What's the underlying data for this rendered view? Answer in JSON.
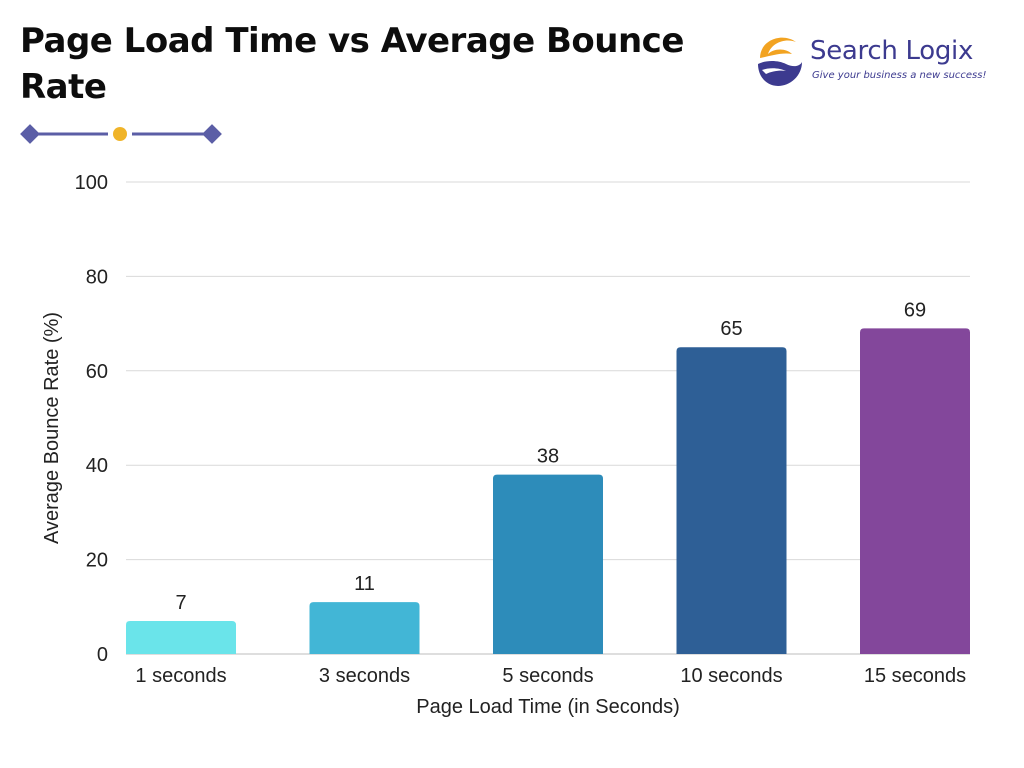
{
  "header": {
    "title": "Page Load Time vs Average Bounce Rate"
  },
  "brand": {
    "name": "Search Logix",
    "tagline": "Give your business a new success!",
    "colors": {
      "orange": "#f2a321",
      "indigo": "#3c3a8f"
    }
  },
  "decoration": {
    "line_color": "#5b5ea6",
    "dot_color": "#f0b429"
  },
  "chart_data": {
    "type": "bar",
    "categories": [
      "1 seconds",
      "3 seconds",
      "5 seconds",
      "10 seconds",
      "15 seconds"
    ],
    "values": [
      7,
      11,
      38,
      65,
      69
    ],
    "colors": [
      "#6ae4ea",
      "#42b6d6",
      "#2d8cba",
      "#2e5f96",
      "#83479b"
    ],
    "title": "",
    "xlabel": "Page Load Time (in Seconds)",
    "ylabel": "Average Bounce Rate (%)",
    "ylim": [
      0,
      100
    ],
    "yticks": [
      0,
      20,
      40,
      60,
      80,
      100
    ],
    "grid": true,
    "legend": "none",
    "data_labels": true
  }
}
